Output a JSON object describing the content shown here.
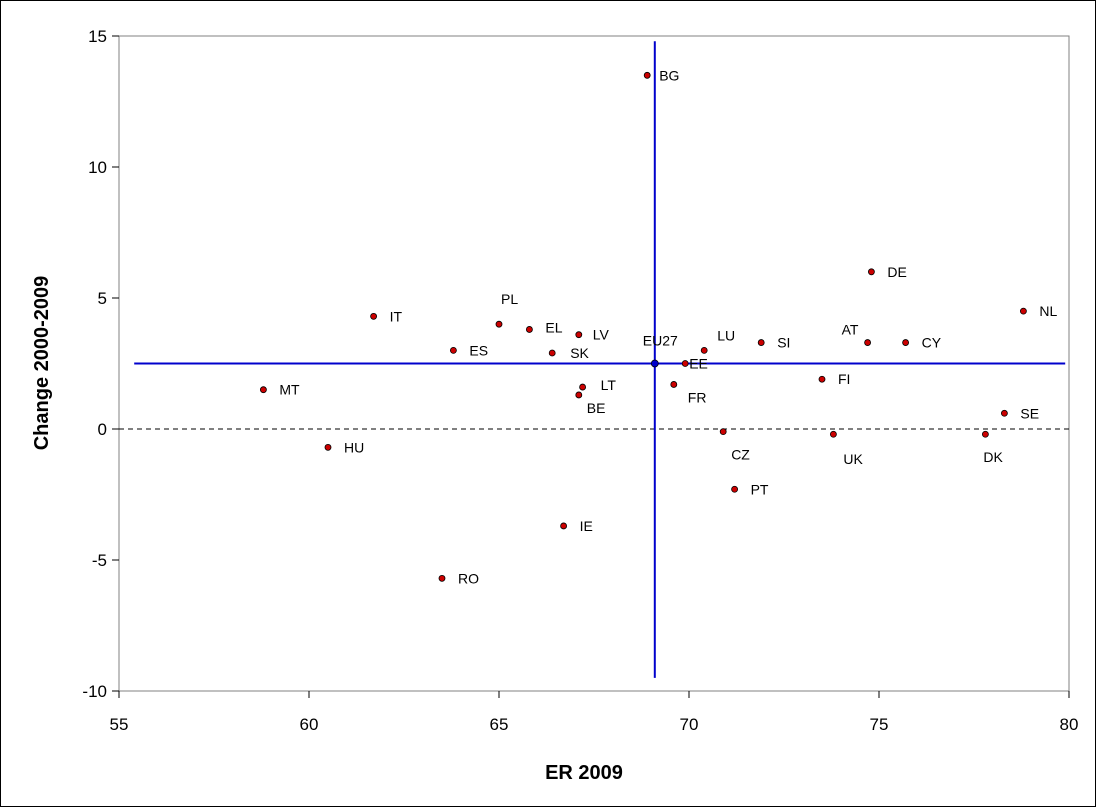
{
  "chart_data": {
    "type": "scatter",
    "title": "",
    "xlabel": "ER 2009",
    "ylabel": "Change 2000-2009",
    "xlim": [
      55,
      80
    ],
    "ylim": [
      -10,
      15
    ],
    "xticks": [
      55,
      60,
      65,
      70,
      75,
      80
    ],
    "yticks": [
      -10,
      -5,
      0,
      5,
      10,
      15
    ],
    "grid": false,
    "legend": "none",
    "colors": {
      "point_fill": "#cc0000",
      "point_stroke": "#000000",
      "reference_lines": "#0000cc",
      "zero_line": "#000000",
      "axis": "#808080"
    },
    "reference_lines": {
      "x": 69.1,
      "y": 2.5,
      "label": "EU27"
    },
    "points": [
      {
        "label": "BG",
        "x": 68.9,
        "y": 13.5
      },
      {
        "label": "DE",
        "x": 74.8,
        "y": 6.0
      },
      {
        "label": "NL",
        "x": 78.8,
        "y": 4.5
      },
      {
        "label": "IT",
        "x": 61.7,
        "y": 4.3
      },
      {
        "label": "PL",
        "x": 65.0,
        "y": 4.0
      },
      {
        "label": "EL",
        "x": 65.8,
        "y": 3.8
      },
      {
        "label": "LV",
        "x": 67.1,
        "y": 3.6
      },
      {
        "label": "AT",
        "x": 74.7,
        "y": 3.3
      },
      {
        "label": "CY",
        "x": 75.7,
        "y": 3.3
      },
      {
        "label": "SI",
        "x": 71.9,
        "y": 3.3
      },
      {
        "label": "LU",
        "x": 70.4,
        "y": 3.0
      },
      {
        "label": "ES",
        "x": 63.8,
        "y": 3.0
      },
      {
        "label": "SK",
        "x": 66.4,
        "y": 2.9
      },
      {
        "label": "EU27",
        "x": 69.1,
        "y": 2.5
      },
      {
        "label": "EE",
        "x": 69.9,
        "y": 2.5
      },
      {
        "label": "FI",
        "x": 73.5,
        "y": 1.9
      },
      {
        "label": "FR",
        "x": 69.6,
        "y": 1.7
      },
      {
        "label": "LT",
        "x": 67.2,
        "y": 1.6
      },
      {
        "label": "MT",
        "x": 58.8,
        "y": 1.5
      },
      {
        "label": "BE",
        "x": 67.1,
        "y": 1.3
      },
      {
        "label": "SE",
        "x": 78.3,
        "y": 0.6
      },
      {
        "label": "CZ",
        "x": 70.9,
        "y": -0.1
      },
      {
        "label": "DK",
        "x": 77.8,
        "y": -0.2
      },
      {
        "label": "UK",
        "x": 73.8,
        "y": -0.2
      },
      {
        "label": "HU",
        "x": 60.5,
        "y": -0.7
      },
      {
        "label": "PT",
        "x": 71.2,
        "y": -2.3
      },
      {
        "label": "IE",
        "x": 66.7,
        "y": -3.7
      },
      {
        "label": "RO",
        "x": 63.5,
        "y": -5.7
      }
    ]
  }
}
